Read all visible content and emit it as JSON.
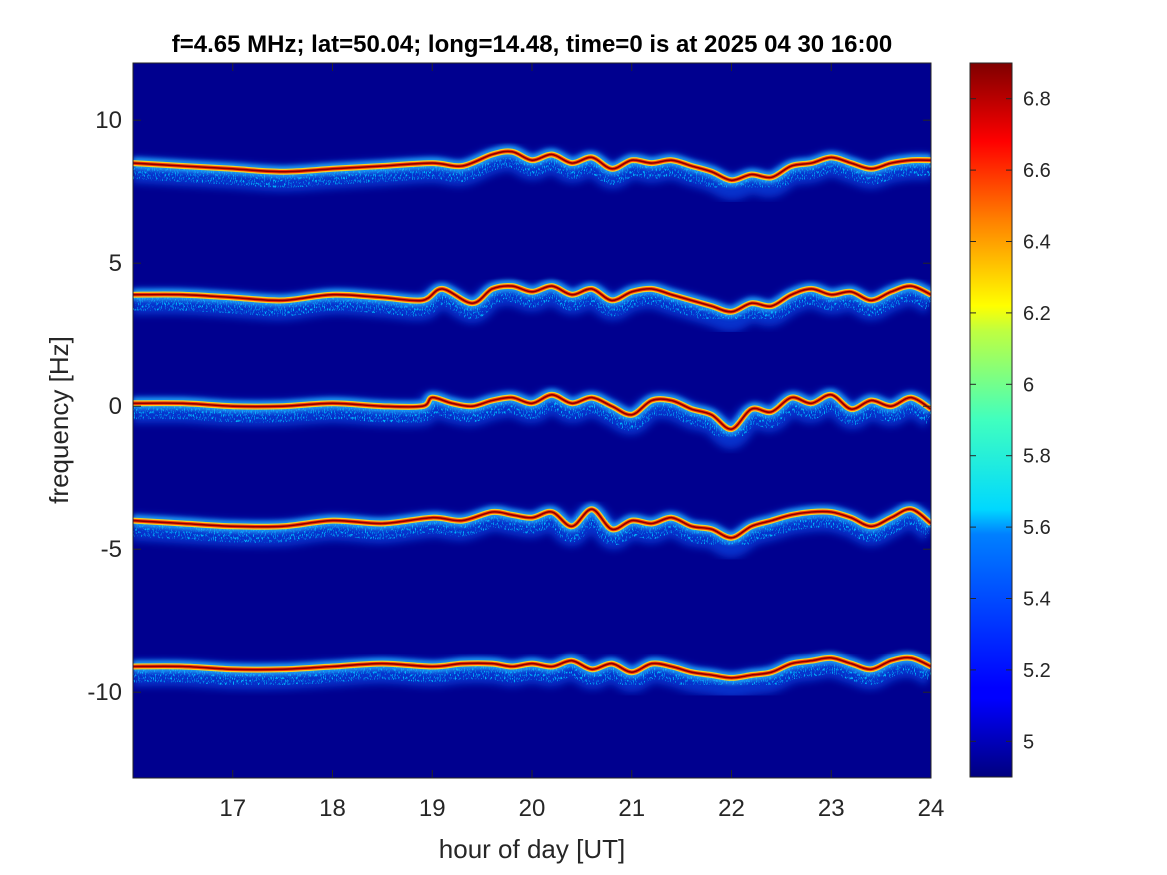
{
  "chart_data": {
    "type": "heatmap",
    "title": "f=4.65 MHz;  lat=50.04; long=14.48, time=0 is at 2025 04 30 16:00",
    "xlabel": "hour of day [UT]",
    "ylabel": "frequency [Hz]",
    "xlim": [
      16,
      24
    ],
    "ylim": [
      -13,
      12
    ],
    "x_ticks": [
      17,
      18,
      19,
      20,
      21,
      22,
      23,
      24
    ],
    "x_tick_labels": [
      "17",
      "18",
      "19",
      "20",
      "21",
      "22",
      "23",
      "24"
    ],
    "y_ticks": [
      10,
      5,
      0,
      -5,
      -10
    ],
    "y_tick_labels": [
      "10",
      "5",
      "0",
      "-5",
      "-10"
    ],
    "colorbar": {
      "range": [
        4.9,
        6.9
      ],
      "ticks": [
        6.8,
        6.6,
        6.4,
        6.2,
        6.0,
        5.8,
        5.6,
        5.4,
        5.2,
        5.0
      ],
      "tick_labels": [
        "6.8",
        "6.6",
        "6.4",
        "6.2",
        "6",
        "5.8",
        "5.6",
        "5.4",
        "5.2",
        "5"
      ],
      "colormap": "jet"
    },
    "background_color": "#00008f",
    "grid": false,
    "traces": [
      {
        "name": "",
        "x": [
          16.0,
          16.5,
          17.0,
          17.5,
          18.0,
          18.5,
          19.0,
          19.3,
          19.6,
          19.8,
          20.0,
          20.2,
          20.4,
          20.6,
          20.8,
          21.0,
          21.2,
          21.4,
          21.6,
          21.8,
          22.0,
          22.2,
          22.4,
          22.6,
          22.8,
          23.0,
          23.2,
          23.4,
          23.6,
          23.8,
          24.0
        ],
        "y": [
          8.5,
          8.4,
          8.3,
          8.2,
          8.3,
          8.4,
          8.5,
          8.4,
          8.8,
          8.9,
          8.6,
          8.8,
          8.5,
          8.7,
          8.3,
          8.6,
          8.5,
          8.6,
          8.4,
          8.2,
          7.9,
          8.1,
          8.0,
          8.4,
          8.5,
          8.7,
          8.5,
          8.3,
          8.5,
          8.6,
          8.6
        ]
      },
      {
        "name": "",
        "x": [
          16.0,
          16.5,
          17.0,
          17.5,
          18.0,
          18.5,
          18.9,
          19.1,
          19.4,
          19.6,
          19.8,
          20.0,
          20.2,
          20.4,
          20.6,
          20.8,
          21.0,
          21.2,
          21.4,
          21.6,
          21.8,
          22.0,
          22.2,
          22.4,
          22.6,
          22.8,
          23.0,
          23.2,
          23.4,
          23.6,
          23.8,
          24.0
        ],
        "y": [
          3.9,
          3.9,
          3.8,
          3.7,
          3.9,
          3.8,
          3.7,
          4.1,
          3.6,
          4.1,
          4.2,
          4.0,
          4.2,
          3.9,
          4.1,
          3.7,
          4.0,
          4.1,
          3.9,
          3.7,
          3.5,
          3.3,
          3.6,
          3.5,
          3.9,
          4.1,
          3.9,
          4.0,
          3.7,
          4.0,
          4.2,
          3.9
        ]
      },
      {
        "name": "",
        "x": [
          16.0,
          16.5,
          17.0,
          17.5,
          18.0,
          18.5,
          18.9,
          19.0,
          19.2,
          19.4,
          19.6,
          19.8,
          20.0,
          20.2,
          20.4,
          20.6,
          20.8,
          21.0,
          21.2,
          21.4,
          21.6,
          21.8,
          22.0,
          22.2,
          22.4,
          22.6,
          22.8,
          23.0,
          23.2,
          23.4,
          23.6,
          23.8,
          24.0
        ],
        "y": [
          0.1,
          0.1,
          0.0,
          0.0,
          0.1,
          0.0,
          0.0,
          0.3,
          0.1,
          0.0,
          0.2,
          0.3,
          0.1,
          0.4,
          0.1,
          0.3,
          0.0,
          -0.3,
          0.2,
          0.2,
          -0.1,
          -0.3,
          -0.8,
          -0.1,
          -0.2,
          0.3,
          0.1,
          0.4,
          -0.1,
          0.2,
          0.0,
          0.3,
          -0.1
        ]
      },
      {
        "name": "",
        "x": [
          16.0,
          16.5,
          17.0,
          17.5,
          18.0,
          18.5,
          19.0,
          19.3,
          19.6,
          19.8,
          20.0,
          20.2,
          20.4,
          20.6,
          20.8,
          21.0,
          21.2,
          21.4,
          21.6,
          21.8,
          22.0,
          22.2,
          22.4,
          22.6,
          22.8,
          23.0,
          23.2,
          23.4,
          23.6,
          23.8,
          24.0
        ],
        "y": [
          -4.0,
          -4.1,
          -4.2,
          -4.2,
          -4.0,
          -4.1,
          -3.9,
          -4.0,
          -3.7,
          -3.8,
          -3.9,
          -3.7,
          -4.2,
          -3.6,
          -4.3,
          -4.0,
          -4.1,
          -3.9,
          -4.2,
          -4.3,
          -4.6,
          -4.2,
          -4.0,
          -3.8,
          -3.7,
          -3.7,
          -3.9,
          -4.2,
          -3.9,
          -3.6,
          -4.1
        ]
      },
      {
        "name": "",
        "x": [
          16.0,
          16.5,
          17.0,
          17.5,
          18.0,
          18.5,
          19.0,
          19.3,
          19.6,
          19.8,
          20.0,
          20.2,
          20.4,
          20.6,
          20.8,
          21.0,
          21.2,
          21.4,
          21.6,
          21.8,
          22.0,
          22.2,
          22.4,
          22.6,
          22.8,
          23.0,
          23.2,
          23.4,
          23.6,
          23.8,
          24.0
        ],
        "y": [
          -9.1,
          -9.1,
          -9.2,
          -9.2,
          -9.1,
          -9.0,
          -9.1,
          -9.0,
          -9.0,
          -9.1,
          -9.0,
          -9.1,
          -8.9,
          -9.2,
          -9.0,
          -9.3,
          -9.0,
          -9.1,
          -9.3,
          -9.4,
          -9.5,
          -9.4,
          -9.3,
          -9.0,
          -8.9,
          -8.8,
          -9.0,
          -9.2,
          -8.9,
          -8.8,
          -9.1
        ]
      }
    ]
  }
}
